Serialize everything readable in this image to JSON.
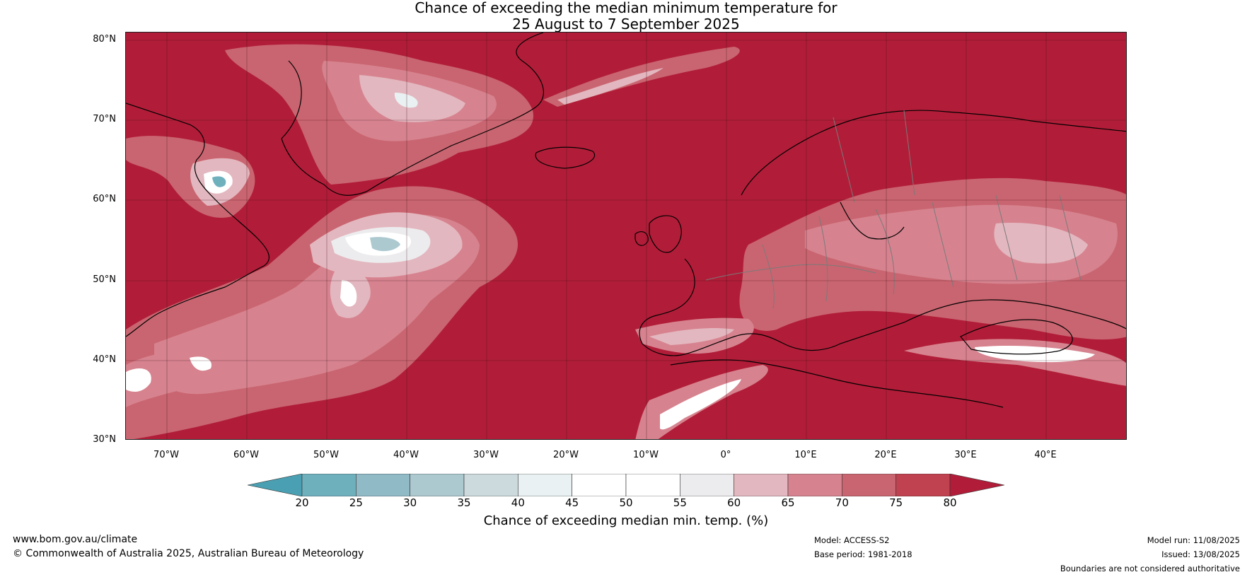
{
  "title": {
    "line1": "Chance of exceeding the median minimum temperature for",
    "line2": "25 August to 7 September 2025"
  },
  "map": {
    "lat_labels": [
      "80°N",
      "70°N",
      "60°N",
      "50°N",
      "40°N",
      "30°N"
    ],
    "lon_labels": [
      "70°W",
      "60°W",
      "50°W",
      "40°W",
      "30°W",
      "20°W",
      "10°W",
      "0°",
      "10°E",
      "20°E",
      "30°E",
      "40°E"
    ],
    "background_color": "#b11d38",
    "coastline_color": "#000000",
    "border_color": "#7a7a7a"
  },
  "legend": {
    "ticks": [
      "20",
      "25",
      "30",
      "35",
      "40",
      "45",
      "50",
      "55",
      "60",
      "65",
      "70",
      "75",
      "80"
    ],
    "colors": [
      "#4aa0b2",
      "#6fb0bd",
      "#8fbac6",
      "#adc9d0",
      "#ccd9dd",
      "#e9f1f2",
      "#ffffff",
      "#ffffff",
      "#ececee",
      "#e3b7bf",
      "#d6838f",
      "#c96570",
      "#c0414f"
    ],
    "below_color": "#4aa0b2",
    "above_color": "#b11d38",
    "label": "Chance of exceeding median min. temp. (%)"
  },
  "footer": {
    "website": "www.bom.gov.au/climate",
    "copyright": "© Commonwealth of Australia 2025, Australian Bureau of Meteorology",
    "model": "Model: ACCESS-S2",
    "base_period": "Base period: 1981-2018",
    "model_run": "Model run: 11/08/2025",
    "issued": "Issued: 13/08/2025",
    "disclaimer": "Boundaries are not considered authoritative"
  }
}
